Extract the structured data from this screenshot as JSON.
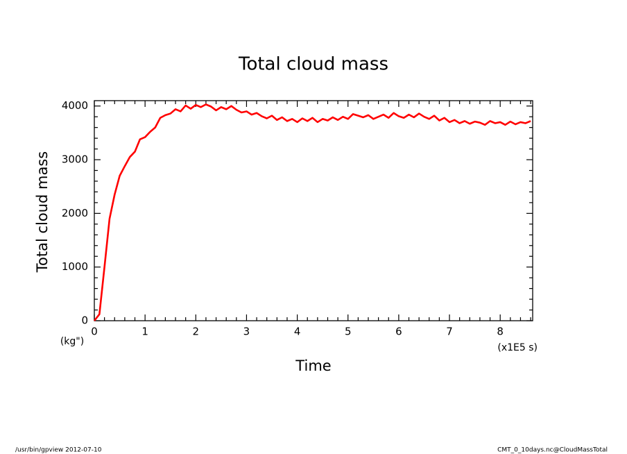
{
  "chart_data": {
    "type": "line",
    "title": "Total cloud mass",
    "y_label": "Total cloud mass",
    "y_unit": "(kg\")",
    "x_label": "Time",
    "x_unit": "(x1E5 s)",
    "footer_left": "/usr/bin/gpview   2012-07-10",
    "footer_right": "CMT_0_10days.nc@CloudMassTotal",
    "xlim": [
      0,
      8.64
    ],
    "ylim": [
      0,
      4100
    ],
    "xticks": [
      0,
      1,
      2,
      3,
      4,
      5,
      6,
      7,
      8
    ],
    "yticks": [
      0,
      1000,
      2000,
      3000,
      4000
    ],
    "xminorticks": [
      0.2,
      0.4,
      0.6,
      0.8,
      1.2,
      1.4,
      1.6,
      1.8,
      2.2,
      2.4,
      2.6,
      2.8,
      3.2,
      3.4,
      3.6,
      3.8,
      4.2,
      4.4,
      4.6,
      4.8,
      5.2,
      5.4,
      5.6,
      5.8,
      6.2,
      6.4,
      6.6,
      6.8,
      7.2,
      7.4,
      7.6,
      7.8,
      8.2,
      8.4,
      8.6
    ],
    "yminorticks": [
      200,
      400,
      600,
      800,
      1200,
      1400,
      1600,
      1800,
      2200,
      2400,
      2600,
      2800,
      3200,
      3400,
      3600,
      3800
    ],
    "x": [
      0,
      0.1,
      0.2,
      0.3,
      0.4,
      0.5,
      0.6,
      0.7,
      0.8,
      0.9,
      1.0,
      1.1,
      1.2,
      1.3,
      1.4,
      1.5,
      1.6,
      1.7,
      1.8,
      1.9,
      2.0,
      2.1,
      2.2,
      2.3,
      2.4,
      2.5,
      2.6,
      2.7,
      2.8,
      2.9,
      3.0,
      3.1,
      3.2,
      3.3,
      3.4,
      3.5,
      3.6,
      3.7,
      3.8,
      3.9,
      4.0,
      4.1,
      4.2,
      4.3,
      4.4,
      4.5,
      4.6,
      4.7,
      4.8,
      4.9,
      5.0,
      5.1,
      5.2,
      5.3,
      5.4,
      5.5,
      5.6,
      5.7,
      5.8,
      5.9,
      6.0,
      6.1,
      6.2,
      6.3,
      6.4,
      6.5,
      6.6,
      6.7,
      6.8,
      6.9,
      7.0,
      7.1,
      7.2,
      7.3,
      7.4,
      7.5,
      7.6,
      7.7,
      7.8,
      7.9,
      8.0,
      8.1,
      8.2,
      8.3,
      8.4,
      8.5,
      8.6
    ],
    "series": [
      {
        "color": "#ff0000",
        "values": [
          0,
          120,
          1000,
          1900,
          2350,
          2700,
          2880,
          3050,
          3150,
          3380,
          3420,
          3520,
          3600,
          3780,
          3830,
          3860,
          3940,
          3900,
          4010,
          3950,
          4020,
          3980,
          4030,
          3990,
          3920,
          3980,
          3940,
          4000,
          3930,
          3880,
          3900,
          3840,
          3870,
          3810,
          3770,
          3820,
          3740,
          3790,
          3720,
          3760,
          3700,
          3770,
          3720,
          3780,
          3700,
          3760,
          3730,
          3790,
          3740,
          3800,
          3760,
          3850,
          3820,
          3790,
          3830,
          3760,
          3800,
          3840,
          3780,
          3870,
          3810,
          3780,
          3840,
          3790,
          3860,
          3800,
          3760,
          3820,
          3730,
          3780,
          3700,
          3740,
          3680,
          3720,
          3670,
          3710,
          3690,
          3650,
          3720,
          3680,
          3700,
          3650,
          3710,
          3660,
          3700,
          3680,
          3720
        ]
      }
    ]
  }
}
